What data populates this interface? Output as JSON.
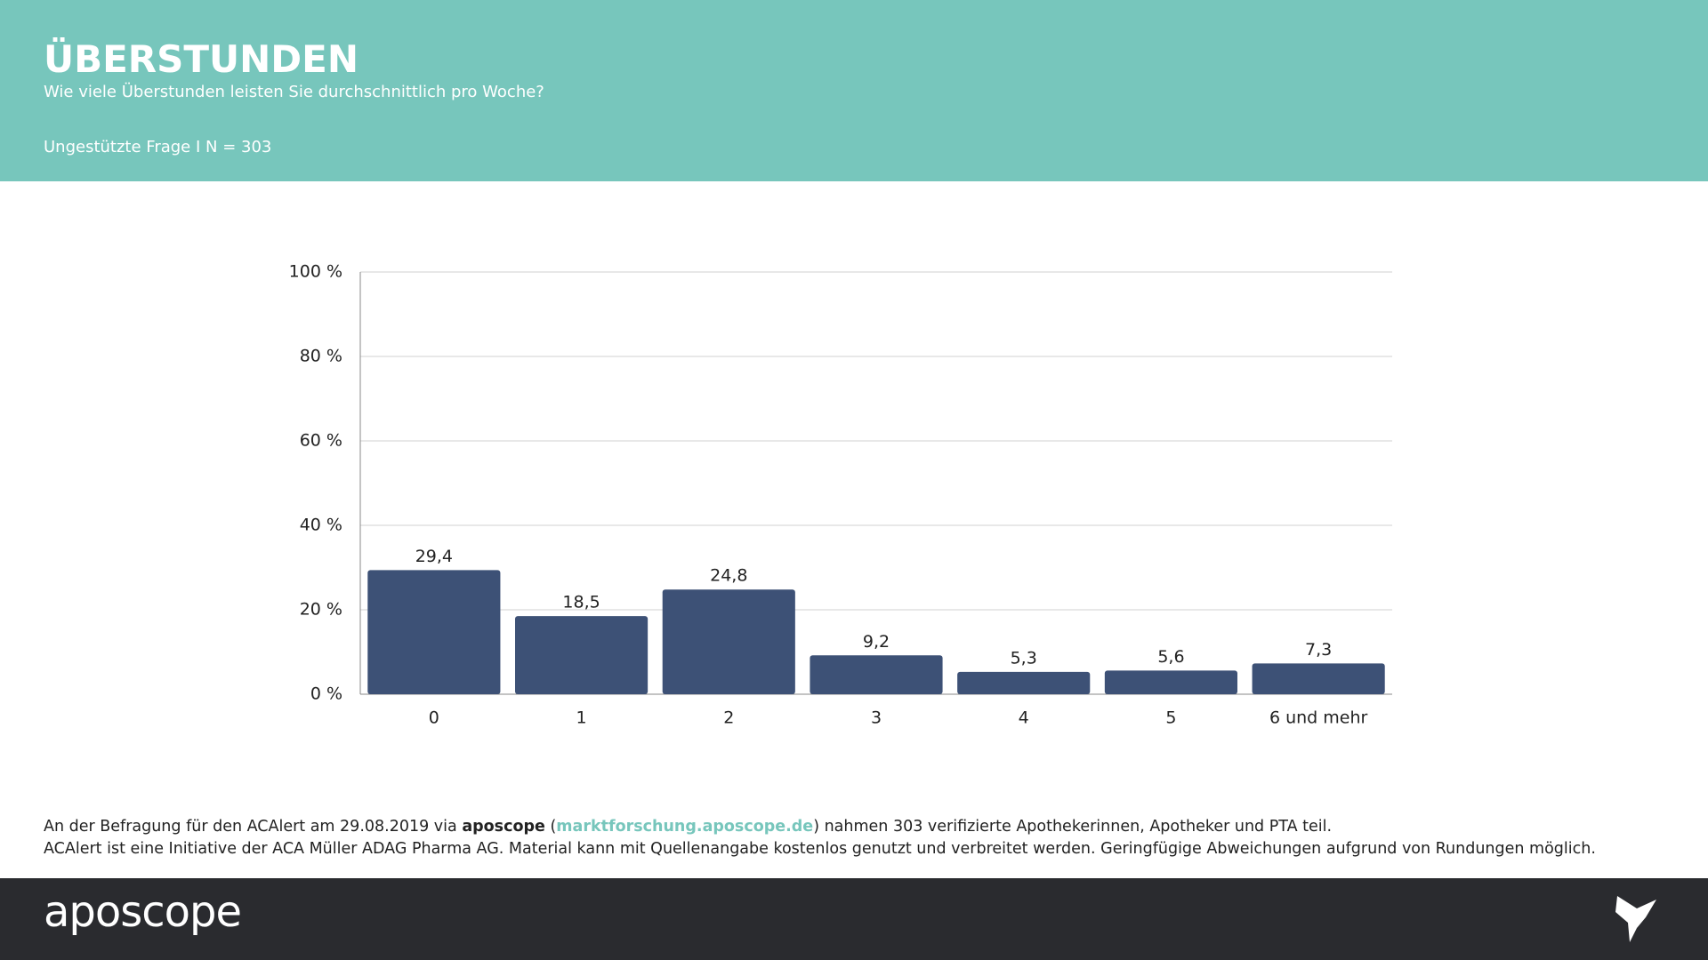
{
  "header": {
    "title": "ÜBERSTUNDEN",
    "subtitle": "Wie viele Überstunden leisten Sie durchschnittlich pro Woche?",
    "note": "Ungestützte Frage I N = 303"
  },
  "chart_data": {
    "type": "bar",
    "categories": [
      "0",
      "1",
      "2",
      "3",
      "4",
      "5",
      "6 und mehr"
    ],
    "values": [
      29.4,
      18.5,
      24.8,
      9.2,
      5.3,
      5.6,
      7.3
    ],
    "value_labels": [
      "29,4",
      "18,5",
      "24,8",
      "9,2",
      "5,3",
      "5,6",
      "7,3"
    ],
    "color": "#3d5176",
    "ylim": [
      0,
      100
    ],
    "yticks": [
      {
        "value": 0,
        "label": "0 %"
      },
      {
        "value": 20,
        "label": "20 %"
      },
      {
        "value": 40,
        "label": "40 %"
      },
      {
        "value": 60,
        "label": "60 %"
      },
      {
        "value": 80,
        "label": "80 %"
      },
      {
        "value": 100,
        "label": "100 %"
      }
    ],
    "grid": true
  },
  "footer": {
    "line1": [
      "An der Befragung für den ACAlert am 29.08.2019 via ",
      "aposcope",
      " (",
      "marktforschung.aposcope.de",
      ") nahmen 303 verifizierte Apothekerinnen, Apotheker und PTA teil."
    ],
    "line2": "ACAlert ist eine Initiative der ACA Müller ADAG Pharma AG. Material kann mit Quellenangabe kostenlos genutzt und verbreitet werden. Geringfügige Abweichungen aufgrund von Rundungen möglich.",
    "logo": "aposcope"
  }
}
